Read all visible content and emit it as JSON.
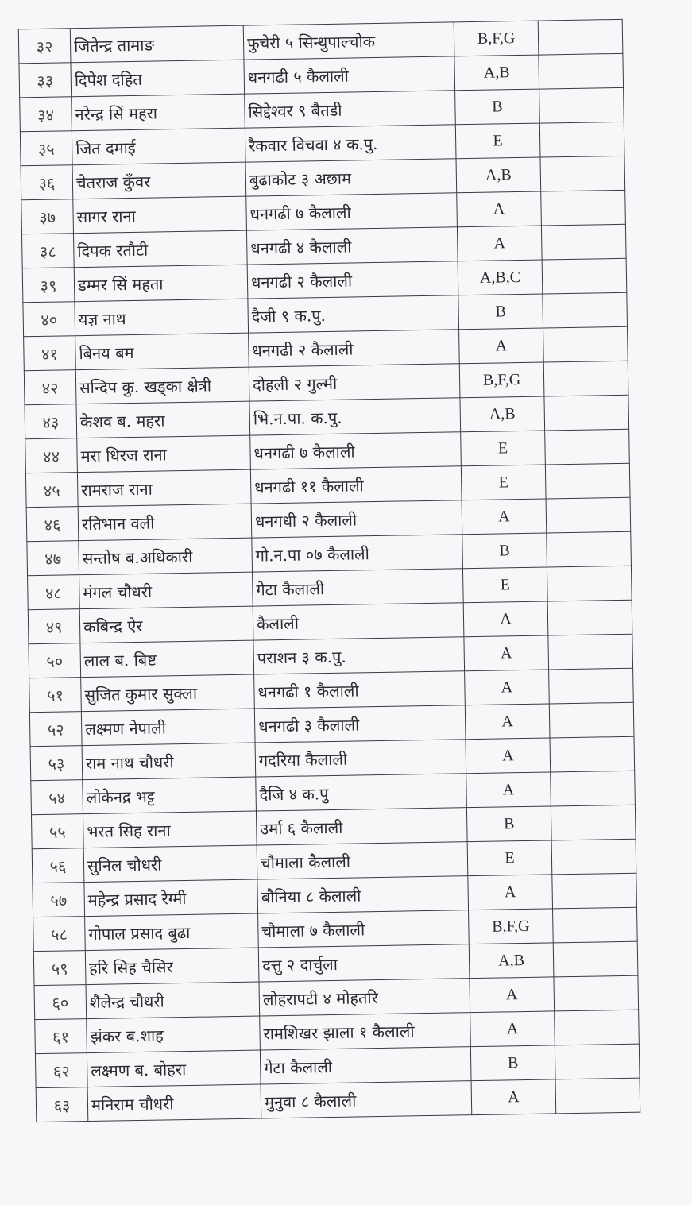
{
  "rows": [
    {
      "sn": "३२",
      "name": "जितेन्द्र तामाङ",
      "address": "फुचेरी ५ सिन्धुपाल्चोक",
      "category": "B,F,G",
      "remarks": ""
    },
    {
      "sn": "३३",
      "name": "दिपेश दहित",
      "address": "धनगढी ५ कैलाली",
      "category": "A,B",
      "remarks": ""
    },
    {
      "sn": "३४",
      "name": "नरेन्द्र सिं महरा",
      "address": "सिद्देश्वर ९ बैतडी",
      "category": "B",
      "remarks": ""
    },
    {
      "sn": "३५",
      "name": "जित दमाई",
      "address": "रैकवार विचवा ४ क.पु.",
      "category": "E",
      "remarks": ""
    },
    {
      "sn": "३६",
      "name": "चेतराज कुँवर",
      "address": "बुढाकोट ३ अछाम",
      "category": "A,B",
      "remarks": ""
    },
    {
      "sn": "३७",
      "name": "सागर राना",
      "address": "धनगढी ७ कैलाली",
      "category": "A",
      "remarks": ""
    },
    {
      "sn": "३८",
      "name": "दिपक रतौटी",
      "address": "धनगढी ४ कैलाली",
      "category": "A",
      "remarks": ""
    },
    {
      "sn": "३९",
      "name": "डम्मर सिं महता",
      "address": "धनगढी २ कैलाली",
      "category": "A,B,C",
      "remarks": ""
    },
    {
      "sn": "४०",
      "name": "यज्ञ नाथ",
      "address": "दैजी ९ क.पु.",
      "category": "B",
      "remarks": ""
    },
    {
      "sn": "४१",
      "name": "बिनय बम",
      "address": "धनगढी २ कैलाली",
      "category": "A",
      "remarks": ""
    },
    {
      "sn": "४२",
      "name": "सन्दिप कु. खड्का क्षेत्री",
      "address": "दोहली २ गुल्मी",
      "category": "B,F,G",
      "remarks": ""
    },
    {
      "sn": "४३",
      "name": "केशव ब. महरा",
      "address": "भि.न.पा. क.पु.",
      "category": "A,B",
      "remarks": ""
    },
    {
      "sn": "४४",
      "name": "मरा धिरज राना",
      "address": "धनगढी ७ कैलाली",
      "category": "E",
      "remarks": ""
    },
    {
      "sn": "४५",
      "name": "रामराज राना",
      "address": "धनगढी ११ कैलाली",
      "category": "E",
      "remarks": ""
    },
    {
      "sn": "४६",
      "name": "रतिभान वली",
      "address": "धनगधी २ कैलाली",
      "category": "A",
      "remarks": ""
    },
    {
      "sn": "४७",
      "name": "सन्तोष ब.अधिकारी",
      "address": "गो.न.पा ०७ कैलाली",
      "category": "B",
      "remarks": ""
    },
    {
      "sn": "४८",
      "name": "मंगल चौधरी",
      "address": "गेटा कैलाली",
      "category": "E",
      "remarks": ""
    },
    {
      "sn": "४९",
      "name": "कबिन्द्र ऐर",
      "address": "कैलाली",
      "category": "A",
      "remarks": ""
    },
    {
      "sn": "५०",
      "name": "लाल ब. बिष्ट",
      "address": "पराशन ३ क.पु.",
      "category": "A",
      "remarks": ""
    },
    {
      "sn": "५१",
      "name": "सुजित कुमार सुक्ला",
      "address": "धनगढी १ कैलाली",
      "category": "A",
      "remarks": ""
    },
    {
      "sn": "५२",
      "name": "लक्ष्मण नेपाली",
      "address": "धनगढी ३ कैलाली",
      "category": "A",
      "remarks": ""
    },
    {
      "sn": "५३",
      "name": "राम नाथ चौधरी",
      "address": "गदरिया कैलाली",
      "category": "A",
      "remarks": ""
    },
    {
      "sn": "५४",
      "name": "लोकेनद्र भट्ट",
      "address": "दैजि ४ क.पु",
      "category": "A",
      "remarks": ""
    },
    {
      "sn": "५५",
      "name": "भरत सिह राना",
      "address": "उर्मा ६ कैलाली",
      "category": "B",
      "remarks": ""
    },
    {
      "sn": "५६",
      "name": "सुनिल चौधरी",
      "address": "चौमाला कैलाली",
      "category": "E",
      "remarks": ""
    },
    {
      "sn": "५७",
      "name": "महेन्द्र प्रसाद रेग्मी",
      "address": "बौनिया ८ केलाली",
      "category": "A",
      "remarks": ""
    },
    {
      "sn": "५८",
      "name": "गोपाल प्रसाद बुढा",
      "address": "चौमाला ७ कैलाली",
      "category": "B,F,G",
      "remarks": ""
    },
    {
      "sn": "५९",
      "name": "हरि सिह चैसिर",
      "address": "दत्तु २ दार्चुला",
      "category": "A,B",
      "remarks": ""
    },
    {
      "sn": "६०",
      "name": "शैलेन्द्र चौधरी",
      "address": "लोहरापटी ४ मोहतरि",
      "category": "A",
      "remarks": ""
    },
    {
      "sn": "६१",
      "name": "झंकर ब.शाह",
      "address": "रामशिखर झाला १ कैलाली",
      "category": "A",
      "remarks": ""
    },
    {
      "sn": "६२",
      "name": "लक्ष्मण ब. बोहरा",
      "address": "गेटा कैलाली",
      "category": "B",
      "remarks": ""
    },
    {
      "sn": "६३",
      "name": "मनिराम चौधरी",
      "address": "मुनुवा ८ कैलाली",
      "category": "A",
      "remarks": ""
    }
  ]
}
